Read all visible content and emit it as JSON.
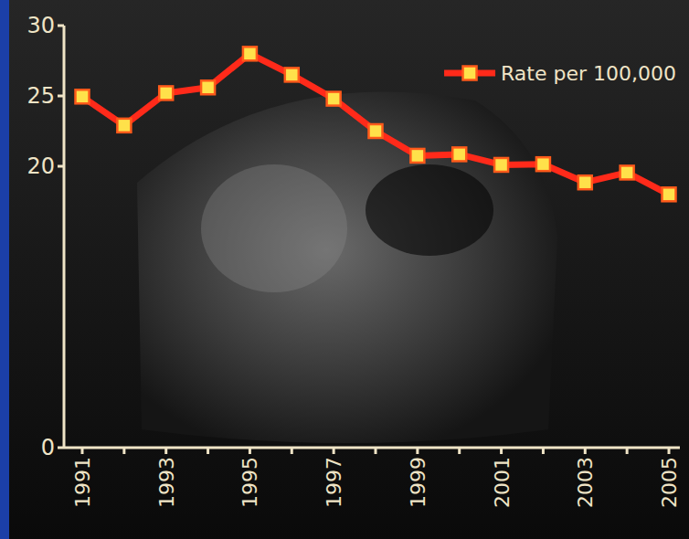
{
  "chart_data": {
    "type": "line",
    "categories": [
      "1991",
      null,
      "1993",
      null,
      "1995",
      null,
      "1997",
      null,
      "1999",
      null,
      "2001",
      null,
      "2003",
      null,
      "2005"
    ],
    "series": [
      {
        "name": "Rate per 100,000",
        "color": "#ff2a1a",
        "marker": "square",
        "values": [
          24.95,
          22.9,
          25.2,
          25.6,
          28.0,
          26.5,
          24.8,
          22.5,
          20.75,
          20.85,
          20.1,
          20.15,
          18.85,
          19.55,
          18.0
        ]
      }
    ],
    "ylim": [
      0,
      30
    ],
    "yticks": [
      0,
      20,
      25,
      30
    ],
    "grid": false,
    "legend": "upper right"
  }
}
